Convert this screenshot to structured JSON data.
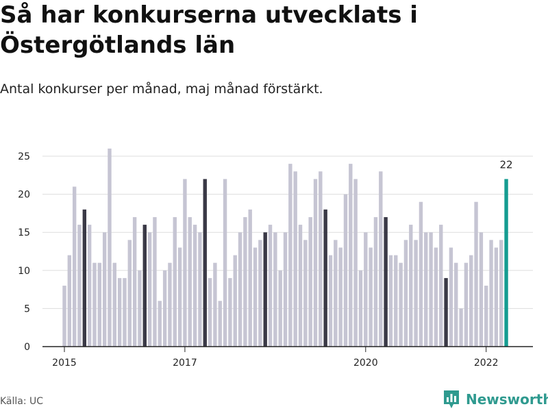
{
  "header": {
    "title": "Så har konkurserna utvecklats i Östergötlands län",
    "subtitle": "Antal konkurser per månad, maj månad förstärkt."
  },
  "footer": {
    "source": "Källa: UC",
    "brand": "Newsworthy",
    "brand_icon": "bar-chart-logo-icon"
  },
  "colors": {
    "bar": "#c6c5d3",
    "bar_may": "#3a3946",
    "bar_highlight": "#159c91",
    "grid": "#dddddd",
    "axis": "#222222",
    "brand": "#2f9a8f"
  },
  "chart_data": {
    "type": "bar",
    "title": "Så har konkurserna utvecklats i Östergötlands län",
    "subtitle": "Antal konkurser per månad, maj månad förstärkt.",
    "xlabel": "",
    "ylabel": "",
    "ylim": [
      0,
      25
    ],
    "yticks": [
      0,
      5,
      10,
      15,
      20,
      25
    ],
    "grid": true,
    "legend": "none",
    "start": "2015-01",
    "x_tick_labels": [
      {
        "label": "2015",
        "month": "2015-01"
      },
      {
        "label": "2017",
        "month": "2017-01"
      },
      {
        "label": "2020",
        "month": "2020-01"
      },
      {
        "label": "2022",
        "month": "2022-01"
      }
    ],
    "values": [
      8,
      12,
      21,
      16,
      18,
      16,
      11,
      11,
      15,
      26,
      11,
      9,
      9,
      14,
      17,
      10,
      16,
      15,
      17,
      6,
      10,
      11,
      17,
      13,
      22,
      17,
      16,
      15,
      22,
      9,
      11,
      6,
      22,
      9,
      12,
      15,
      17,
      18,
      13,
      14,
      15,
      16,
      15,
      10,
      15,
      24,
      23,
      16,
      14,
      17,
      22,
      23,
      18,
      12,
      14,
      13,
      20,
      24,
      22,
      10,
      15,
      13,
      17,
      23,
      17,
      12,
      12,
      11,
      14,
      16,
      14,
      19,
      15,
      15,
      13,
      16,
      9,
      13,
      11,
      5,
      11,
      12,
      19,
      15,
      8,
      14,
      13,
      14,
      22
    ],
    "highlight_month": "May",
    "annotations": [
      {
        "month": "2022-05",
        "text": "22"
      }
    ]
  }
}
